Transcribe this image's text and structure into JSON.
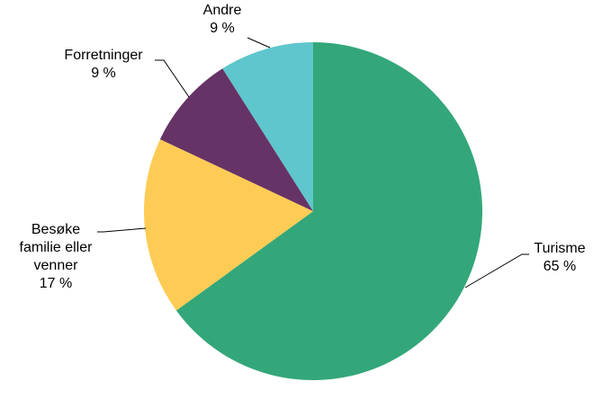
{
  "chart_data": {
    "type": "pie",
    "categories": [
      "Turisme",
      "Besøke\nfamilie eller\nvenner",
      "Forretninger",
      "Andre"
    ],
    "values": [
      65,
      17,
      9,
      9
    ],
    "value_labels": [
      "65 %",
      "17 %",
      "9 %",
      "9 %"
    ],
    "colors": [
      "#33a77a",
      "#fecc55",
      "#663366",
      "#5ec6cc"
    ]
  }
}
